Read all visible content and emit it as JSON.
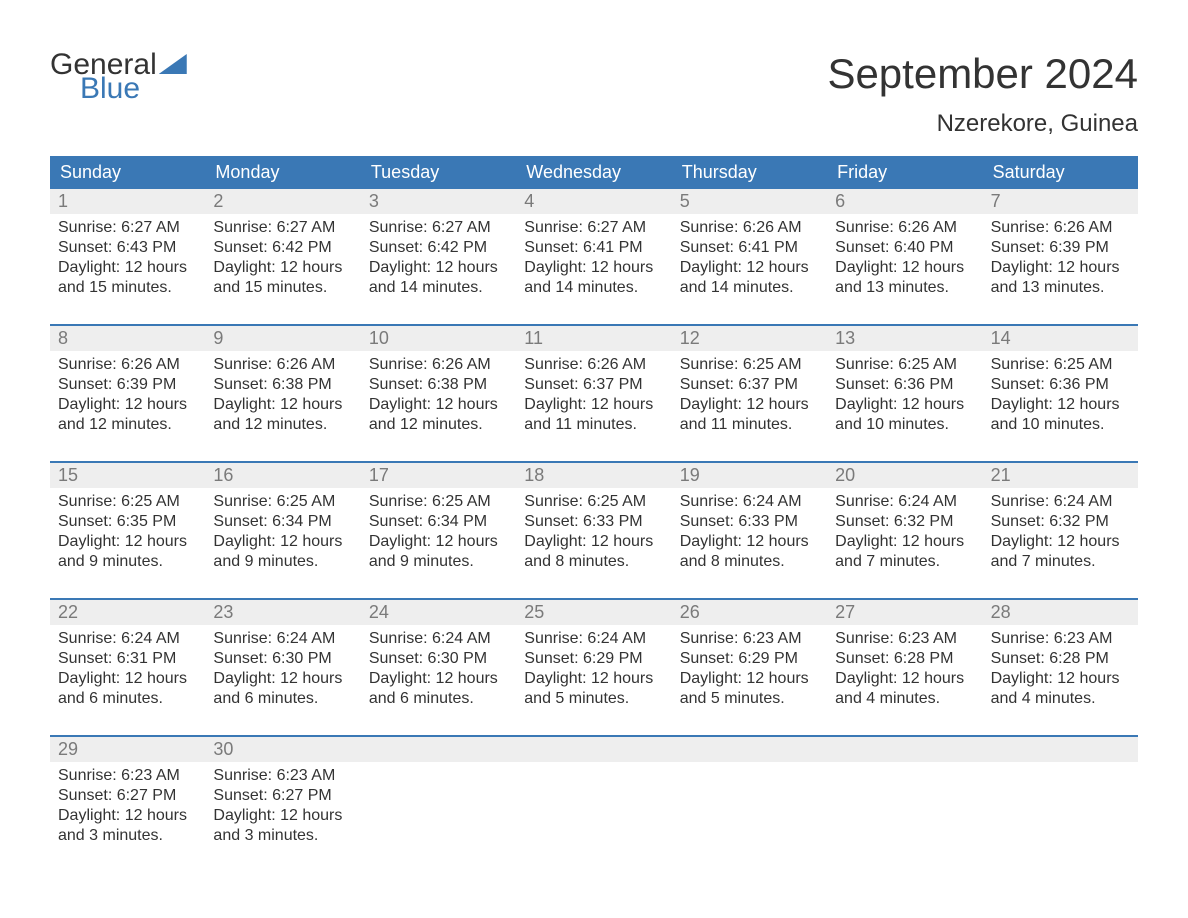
{
  "logo": {
    "top": "General",
    "bottom": "Blue"
  },
  "title": "September 2024",
  "location": "Nzerekore, Guinea",
  "colors": {
    "brand": "#3a78b5",
    "header_bg": "#3a78b5",
    "header_text": "#ffffff",
    "numrow_bg": "#eeeeee",
    "daynum_text": "#7a7a7a",
    "body_text": "#333333",
    "background": "#ffffff",
    "week_rule": "#3a78b5"
  },
  "daynames": [
    "Sunday",
    "Monday",
    "Tuesday",
    "Wednesday",
    "Thursday",
    "Friday",
    "Saturday"
  ],
  "weeks": [
    [
      {
        "n": "1",
        "sr": "Sunrise: 6:27 AM",
        "ss": "Sunset: 6:43 PM",
        "d1": "Daylight: 12 hours",
        "d2": "and 15 minutes."
      },
      {
        "n": "2",
        "sr": "Sunrise: 6:27 AM",
        "ss": "Sunset: 6:42 PM",
        "d1": "Daylight: 12 hours",
        "d2": "and 15 minutes."
      },
      {
        "n": "3",
        "sr": "Sunrise: 6:27 AM",
        "ss": "Sunset: 6:42 PM",
        "d1": "Daylight: 12 hours",
        "d2": "and 14 minutes."
      },
      {
        "n": "4",
        "sr": "Sunrise: 6:27 AM",
        "ss": "Sunset: 6:41 PM",
        "d1": "Daylight: 12 hours",
        "d2": "and 14 minutes."
      },
      {
        "n": "5",
        "sr": "Sunrise: 6:26 AM",
        "ss": "Sunset: 6:41 PM",
        "d1": "Daylight: 12 hours",
        "d2": "and 14 minutes."
      },
      {
        "n": "6",
        "sr": "Sunrise: 6:26 AM",
        "ss": "Sunset: 6:40 PM",
        "d1": "Daylight: 12 hours",
        "d2": "and 13 minutes."
      },
      {
        "n": "7",
        "sr": "Sunrise: 6:26 AM",
        "ss": "Sunset: 6:39 PM",
        "d1": "Daylight: 12 hours",
        "d2": "and 13 minutes."
      }
    ],
    [
      {
        "n": "8",
        "sr": "Sunrise: 6:26 AM",
        "ss": "Sunset: 6:39 PM",
        "d1": "Daylight: 12 hours",
        "d2": "and 12 minutes."
      },
      {
        "n": "9",
        "sr": "Sunrise: 6:26 AM",
        "ss": "Sunset: 6:38 PM",
        "d1": "Daylight: 12 hours",
        "d2": "and 12 minutes."
      },
      {
        "n": "10",
        "sr": "Sunrise: 6:26 AM",
        "ss": "Sunset: 6:38 PM",
        "d1": "Daylight: 12 hours",
        "d2": "and 12 minutes."
      },
      {
        "n": "11",
        "sr": "Sunrise: 6:26 AM",
        "ss": "Sunset: 6:37 PM",
        "d1": "Daylight: 12 hours",
        "d2": "and 11 minutes."
      },
      {
        "n": "12",
        "sr": "Sunrise: 6:25 AM",
        "ss": "Sunset: 6:37 PM",
        "d1": "Daylight: 12 hours",
        "d2": "and 11 minutes."
      },
      {
        "n": "13",
        "sr": "Sunrise: 6:25 AM",
        "ss": "Sunset: 6:36 PM",
        "d1": "Daylight: 12 hours",
        "d2": "and 10 minutes."
      },
      {
        "n": "14",
        "sr": "Sunrise: 6:25 AM",
        "ss": "Sunset: 6:36 PM",
        "d1": "Daylight: 12 hours",
        "d2": "and 10 minutes."
      }
    ],
    [
      {
        "n": "15",
        "sr": "Sunrise: 6:25 AM",
        "ss": "Sunset: 6:35 PM",
        "d1": "Daylight: 12 hours",
        "d2": "and 9 minutes."
      },
      {
        "n": "16",
        "sr": "Sunrise: 6:25 AM",
        "ss": "Sunset: 6:34 PM",
        "d1": "Daylight: 12 hours",
        "d2": "and 9 minutes."
      },
      {
        "n": "17",
        "sr": "Sunrise: 6:25 AM",
        "ss": "Sunset: 6:34 PM",
        "d1": "Daylight: 12 hours",
        "d2": "and 9 minutes."
      },
      {
        "n": "18",
        "sr": "Sunrise: 6:25 AM",
        "ss": "Sunset: 6:33 PM",
        "d1": "Daylight: 12 hours",
        "d2": "and 8 minutes."
      },
      {
        "n": "19",
        "sr": "Sunrise: 6:24 AM",
        "ss": "Sunset: 6:33 PM",
        "d1": "Daylight: 12 hours",
        "d2": "and 8 minutes."
      },
      {
        "n": "20",
        "sr": "Sunrise: 6:24 AM",
        "ss": "Sunset: 6:32 PM",
        "d1": "Daylight: 12 hours",
        "d2": "and 7 minutes."
      },
      {
        "n": "21",
        "sr": "Sunrise: 6:24 AM",
        "ss": "Sunset: 6:32 PM",
        "d1": "Daylight: 12 hours",
        "d2": "and 7 minutes."
      }
    ],
    [
      {
        "n": "22",
        "sr": "Sunrise: 6:24 AM",
        "ss": "Sunset: 6:31 PM",
        "d1": "Daylight: 12 hours",
        "d2": "and 6 minutes."
      },
      {
        "n": "23",
        "sr": "Sunrise: 6:24 AM",
        "ss": "Sunset: 6:30 PM",
        "d1": "Daylight: 12 hours",
        "d2": "and 6 minutes."
      },
      {
        "n": "24",
        "sr": "Sunrise: 6:24 AM",
        "ss": "Sunset: 6:30 PM",
        "d1": "Daylight: 12 hours",
        "d2": "and 6 minutes."
      },
      {
        "n": "25",
        "sr": "Sunrise: 6:24 AM",
        "ss": "Sunset: 6:29 PM",
        "d1": "Daylight: 12 hours",
        "d2": "and 5 minutes."
      },
      {
        "n": "26",
        "sr": "Sunrise: 6:23 AM",
        "ss": "Sunset: 6:29 PM",
        "d1": "Daylight: 12 hours",
        "d2": "and 5 minutes."
      },
      {
        "n": "27",
        "sr": "Sunrise: 6:23 AM",
        "ss": "Sunset: 6:28 PM",
        "d1": "Daylight: 12 hours",
        "d2": "and 4 minutes."
      },
      {
        "n": "28",
        "sr": "Sunrise: 6:23 AM",
        "ss": "Sunset: 6:28 PM",
        "d1": "Daylight: 12 hours",
        "d2": "and 4 minutes."
      }
    ],
    [
      {
        "n": "29",
        "sr": "Sunrise: 6:23 AM",
        "ss": "Sunset: 6:27 PM",
        "d1": "Daylight: 12 hours",
        "d2": "and 3 minutes."
      },
      {
        "n": "30",
        "sr": "Sunrise: 6:23 AM",
        "ss": "Sunset: 6:27 PM",
        "d1": "Daylight: 12 hours",
        "d2": "and 3 minutes."
      },
      null,
      null,
      null,
      null,
      null
    ]
  ]
}
